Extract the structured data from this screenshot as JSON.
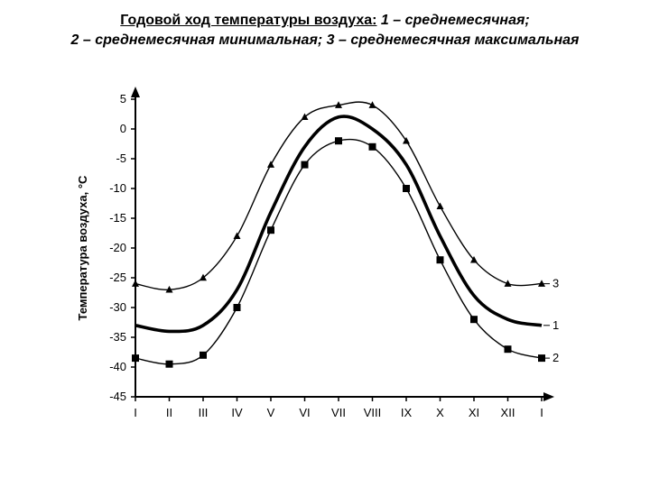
{
  "header": {
    "title_main": "Годовой ход температуры воздуха:",
    "title_rest": " 1 – среднемесячная;",
    "title_line2": "2 – среднемесячная минимальная; 3 – среднемесячная максимальная"
  },
  "chart": {
    "type": "line",
    "background_color": "#ffffff",
    "axis_color": "#000000",
    "y_axis": {
      "label": "Температура воздуха, °С",
      "label_fontsize": 13,
      "min": -45,
      "max": 5,
      "tick_step": 5,
      "ticks": [
        5,
        0,
        -5,
        -10,
        -15,
        -20,
        -25,
        -30,
        -35,
        -40,
        -45
      ]
    },
    "x_axis": {
      "labels": [
        "I",
        "II",
        "III",
        "IV",
        "V",
        "VI",
        "VII",
        "VIII",
        "IX",
        "X",
        "XI",
        "XII",
        "I"
      ],
      "label_fontsize": 13
    },
    "series": [
      {
        "id": "mean",
        "label": "1",
        "marker": "none",
        "line_width": 3.6,
        "color": "#000000",
        "values": [
          -33,
          -34,
          -33,
          -27,
          -14,
          -3,
          2,
          0,
          -6,
          -18,
          -28,
          -32,
          -33
        ]
      },
      {
        "id": "min",
        "label": "2",
        "marker": "square",
        "marker_size": 8,
        "line_width": 1.4,
        "color": "#000000",
        "values": [
          -38.5,
          -39.5,
          -38,
          -30,
          -17,
          -6,
          -2,
          -3,
          -10,
          -22,
          -32,
          -37,
          -38.5
        ]
      },
      {
        "id": "max",
        "label": "3",
        "marker": "triangle",
        "marker_size": 8,
        "line_width": 1.4,
        "color": "#000000",
        "values": [
          -26,
          -27,
          -25,
          -18,
          -6,
          2,
          4,
          4,
          -2,
          -13,
          -22,
          -26,
          -26
        ]
      }
    ],
    "annotations": {
      "series_end_labels": {
        "mean": "1",
        "min": "2",
        "max": "3"
      }
    }
  }
}
